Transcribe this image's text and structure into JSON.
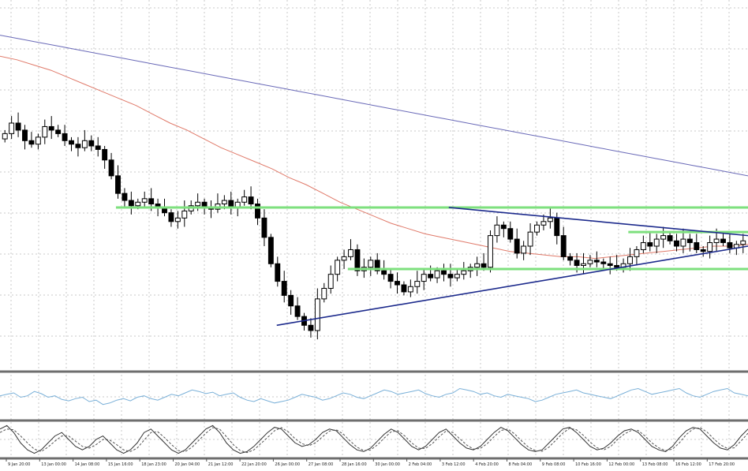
{
  "colors": {
    "background": "#ffffff",
    "grid": "#c8c8c8",
    "candle": "#000000",
    "ma_fast": "#e07a6a",
    "ma_slow": "#6a6ab8",
    "support_resistance": "#7ee07e",
    "triangle": "#1c2a8c",
    "separator": "#6e6e6e",
    "osc_line": "#7ab0d8",
    "stoch_main": "#333333",
    "stoch_signal": "#555555"
  },
  "chart_data": [
    {
      "type": "candlestick",
      "panel": "price",
      "grid": true,
      "x_tick_labels": [
        "9 Jan 20:00",
        "13 Jan 00:00",
        "14 Jan 08:00",
        "15 Jan 16:00",
        "18 Jan 23:00",
        "20 Jan 04:00",
        "21 Jan 12:00",
        "22 Jan 20:00",
        "26 Jan 00:00",
        "27 Jan 08:00",
        "28 Jan 16:00",
        "30 Jan 00:00",
        "2 Feb 04:00",
        "3 Feb 12:00",
        "4 Feb 20:00",
        "8 Feb 04:00",
        "9 Feb 08:00",
        "10 Feb 16:00",
        "12 Feb 00:00",
        "13 Feb 08:00",
        "16 Feb 12:00",
        "17 Feb 20:00"
      ],
      "candles_close": [
        64,
        70,
        66,
        60,
        58,
        62,
        68,
        66,
        64,
        60,
        58,
        56,
        60,
        57,
        55,
        49,
        40,
        30,
        26,
        23,
        25,
        27,
        24,
        22,
        19,
        14,
        16,
        20,
        23,
        25,
        22,
        21,
        24,
        26,
        22,
        25,
        28,
        24,
        16,
        5,
        -10,
        -20,
        -28,
        -34,
        -40,
        -45,
        -48,
        -30,
        -24,
        -16,
        -8,
        -6,
        -2,
        -14,
        -12,
        -8,
        -14,
        -16,
        -20,
        -22,
        -26,
        -23,
        -20,
        -16,
        -18,
        -14,
        -16,
        -18,
        -16,
        -14,
        -12,
        -10,
        -12,
        6,
        12,
        10,
        4,
        -4,
        0,
        8,
        12,
        14,
        16,
        6,
        -6,
        -8,
        -11,
        -10,
        -8,
        -9,
        -10,
        -11,
        -12,
        -10,
        -6,
        -2,
        2,
        0,
        4,
        6,
        3,
        0,
        4,
        2,
        -2,
        -3,
        2,
        4,
        2,
        -1,
        1,
        3
      ],
      "ma_fast_values": [
        108,
        106,
        103,
        100,
        96,
        92,
        88,
        84,
        80,
        75,
        70,
        66,
        61,
        56,
        52,
        48,
        44,
        39,
        35,
        30,
        25,
        21,
        17,
        13,
        10,
        7,
        5,
        3,
        1,
        -1,
        -3,
        -4,
        -5,
        -6,
        -6,
        -7,
        -6,
        -5,
        -4,
        -3,
        -2,
        -1,
        0,
        0,
        1
      ],
      "ma_slow_values": [
        120,
        118,
        116,
        114,
        112,
        110,
        108,
        106,
        104,
        102,
        100,
        98,
        96,
        94,
        92,
        90,
        88,
        86,
        84,
        82,
        80,
        78,
        76,
        74,
        72,
        70,
        68,
        66,
        64,
        62,
        60,
        58,
        56,
        54,
        52,
        50,
        48,
        46,
        44,
        42,
        40
      ],
      "horizontal_levels": [
        {
          "from": 0.155,
          "to": 1.0,
          "value": 22
        },
        {
          "from": 0.465,
          "to": 1.0,
          "value": -13
        },
        {
          "from": 0.84,
          "to": 1.0,
          "value": 8
        }
      ],
      "triangle_upper": [
        {
          "x": 0.6,
          "y": 22
        },
        {
          "x": 1.0,
          "y": 6
        }
      ],
      "triangle_lower": [
        {
          "x": 0.37,
          "y": -45
        },
        {
          "x": 1.0,
          "y": 0
        }
      ]
    },
    {
      "type": "line",
      "panel": "oscillator",
      "grid": true,
      "series": [
        {
          "values": [
            52,
            54,
            56,
            50,
            52,
            58,
            55,
            50,
            52,
            47,
            45,
            48,
            50,
            44,
            46,
            40,
            42,
            46,
            48,
            45,
            50,
            52,
            48,
            46,
            50,
            54,
            52,
            56,
            60,
            58,
            55,
            57,
            52,
            54,
            56,
            50,
            46,
            44,
            48,
            45,
            42,
            44,
            46,
            50,
            54,
            52,
            50,
            46,
            48,
            52,
            56,
            54,
            50,
            48,
            52,
            56,
            60,
            58,
            54,
            56,
            58,
            60,
            55,
            52,
            50,
            54,
            56,
            62,
            60,
            58,
            54,
            56,
            52,
            50,
            54,
            52,
            50,
            48,
            44,
            46,
            50,
            54,
            56,
            58,
            60,
            56,
            54,
            52,
            50,
            48,
            52,
            56,
            60,
            62,
            58,
            54,
            56,
            58,
            60,
            62,
            56,
            52,
            50,
            54,
            58,
            60,
            62,
            56,
            54,
            52
          ]
        }
      ]
    },
    {
      "type": "line",
      "panel": "stochastic",
      "grid": true,
      "series": [
        {
          "values": [
            80,
            90,
            70,
            40,
            20,
            10,
            20,
            40,
            60,
            70,
            50,
            30,
            20,
            30,
            50,
            60,
            40,
            20,
            10,
            20,
            40,
            70,
            80,
            60,
            40,
            20,
            10,
            20,
            40,
            60,
            80,
            90,
            70,
            40,
            20,
            10,
            15,
            30,
            50,
            70,
            85,
            80,
            60,
            40,
            30,
            35,
            50,
            70,
            80,
            75,
            55,
            35,
            20,
            15,
            25,
            45,
            65,
            80,
            70,
            50,
            30,
            20,
            30,
            50,
            70,
            80,
            60,
            40,
            25,
            20,
            30,
            50,
            70,
            85,
            75,
            55,
            35,
            20,
            15,
            20,
            40,
            60,
            80,
            85,
            70,
            50,
            30,
            20,
            25,
            40,
            60,
            75,
            80,
            70,
            50,
            30,
            20,
            15,
            30,
            55,
            75,
            85,
            80,
            60,
            40,
            25,
            20,
            35,
            60,
            80
          ]
        },
        {
          "values": [
            70,
            80,
            78,
            60,
            40,
            22,
            15,
            28,
            45,
            60,
            60,
            45,
            30,
            25,
            35,
            50,
            48,
            35,
            20,
            15,
            25,
            48,
            70,
            72,
            55,
            35,
            18,
            15,
            28,
            48,
            68,
            84,
            80,
            58,
            35,
            18,
            12,
            20,
            38,
            56,
            75,
            84,
            72,
            52,
            38,
            32,
            40,
            58,
            74,
            78,
            66,
            46,
            28,
            18,
            20,
            34,
            54,
            72,
            75,
            60,
            40,
            25,
            24,
            38,
            58,
            74,
            70,
            52,
            34,
            22,
            24,
            38,
            58,
            76,
            80,
            66,
            46,
            28,
            18,
            16,
            28,
            48,
            68,
            82,
            78,
            62,
            42,
            26,
            20,
            30,
            50,
            66,
            76,
            76,
            60,
            40,
            26,
            18,
            22,
            40,
            64,
            80,
            84,
            72,
            52,
            34,
            24,
            26,
            46,
            68
          ]
        }
      ]
    }
  ]
}
